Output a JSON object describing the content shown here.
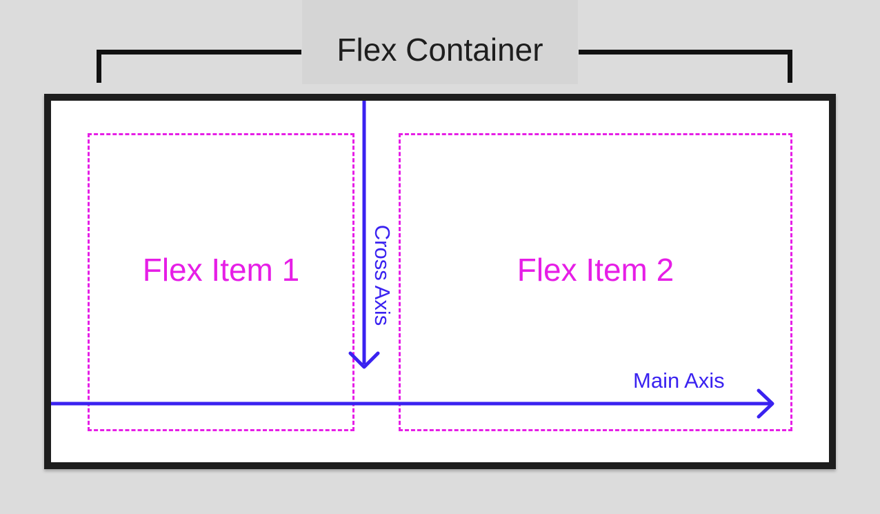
{
  "title": "Flex Container",
  "items": [
    {
      "label": "Flex Item 1"
    },
    {
      "label": "Flex Item 2"
    }
  ],
  "axes": {
    "main": "Main Axis",
    "cross": "Cross Axis"
  },
  "colors": {
    "background": "#dcdcdc",
    "container_border": "#1e1e1e",
    "item_outline": "#e61ee6",
    "axis": "#3a22f0"
  }
}
